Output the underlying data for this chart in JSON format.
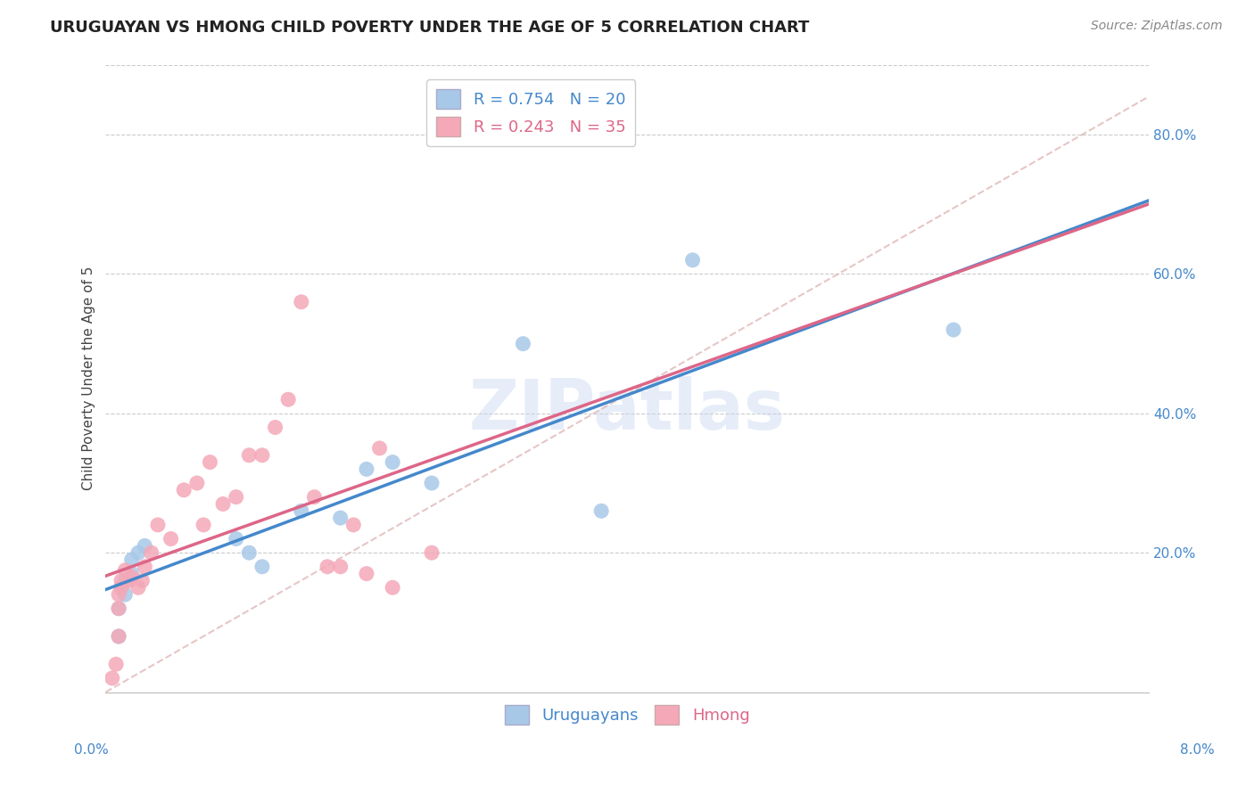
{
  "title": "URUGUAYAN VS HMONG CHILD POVERTY UNDER THE AGE OF 5 CORRELATION CHART",
  "source": "Source: ZipAtlas.com",
  "ylabel": "Child Poverty Under the Age of 5",
  "watermark": "ZIPatlas",
  "uruguayan_R": 0.754,
  "uruguayan_N": 20,
  "hmong_R": 0.243,
  "hmong_N": 35,
  "uruguayan_color": "#a8c8e8",
  "hmong_color": "#f4a8b8",
  "uruguayan_line_color": "#4488cc",
  "hmong_line_color": "#dd6688",
  "dashed_line_color": "#e0b8b8",
  "uruguayan_x": [
    0.1,
    0.1,
    0.15,
    0.15,
    0.2,
    0.2,
    0.25,
    0.3,
    1.0,
    1.1,
    1.2,
    1.5,
    1.8,
    2.0,
    2.2,
    2.5,
    3.2,
    3.8,
    4.5,
    6.5
  ],
  "uruguayan_y": [
    0.08,
    0.12,
    0.14,
    0.16,
    0.17,
    0.19,
    0.2,
    0.21,
    0.22,
    0.2,
    0.18,
    0.26,
    0.25,
    0.32,
    0.33,
    0.3,
    0.5,
    0.26,
    0.62,
    0.52
  ],
  "hmong_x": [
    0.05,
    0.08,
    0.1,
    0.1,
    0.1,
    0.12,
    0.12,
    0.15,
    0.18,
    0.2,
    0.25,
    0.28,
    0.3,
    0.35,
    0.4,
    0.5,
    0.6,
    0.7,
    0.75,
    0.8,
    0.9,
    1.0,
    1.1,
    1.2,
    1.3,
    1.4,
    1.5,
    1.6,
    1.7,
    1.8,
    1.9,
    2.0,
    2.1,
    2.2,
    2.5
  ],
  "hmong_y": [
    0.02,
    0.04,
    0.08,
    0.12,
    0.14,
    0.15,
    0.16,
    0.175,
    0.16,
    0.165,
    0.15,
    0.16,
    0.18,
    0.2,
    0.24,
    0.22,
    0.29,
    0.3,
    0.24,
    0.33,
    0.27,
    0.28,
    0.34,
    0.34,
    0.38,
    0.42,
    0.56,
    0.28,
    0.18,
    0.18,
    0.24,
    0.17,
    0.35,
    0.15,
    0.2
  ],
  "xmin": 0.0,
  "xmax": 8.0,
  "ymin": 0.0,
  "ymax": 0.9,
  "ytick_vals": [
    0.0,
    0.2,
    0.4,
    0.6,
    0.8
  ],
  "ytick_labels": [
    "",
    "20.0%",
    "40.0%",
    "60.0%",
    "80.0%"
  ],
  "title_fontsize": 13,
  "source_fontsize": 10,
  "axis_tick_fontsize": 11,
  "legend_fontsize": 13
}
